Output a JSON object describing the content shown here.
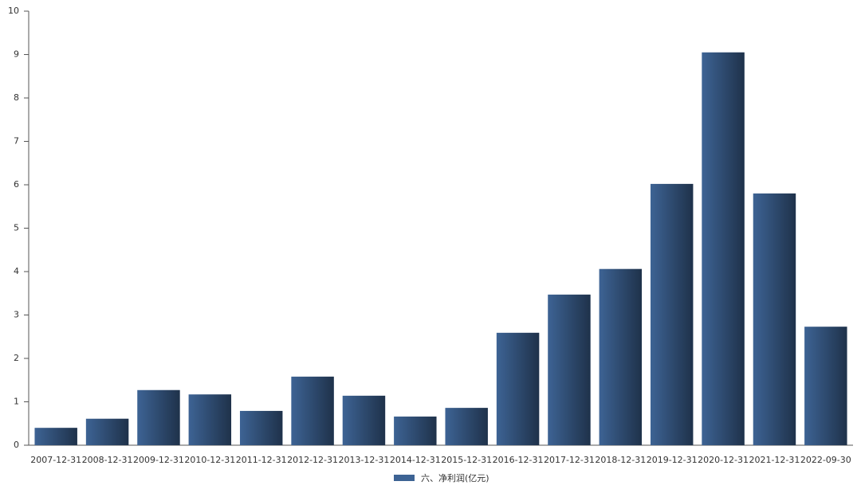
{
  "chart_data": {
    "type": "bar",
    "categories": [
      "2007-12-31",
      "2008-12-31",
      "2009-12-31",
      "2010-12-31",
      "2011-12-31",
      "2012-12-31",
      "2013-12-31",
      "2014-12-31",
      "2015-12-31",
      "2016-12-31",
      "2017-12-31",
      "2018-12-31",
      "2019-12-31",
      "2020-12-31",
      "2021-12-31",
      "2022-09-30"
    ],
    "series": [
      {
        "name": "六、净利润(亿元)",
        "color": "#3d6394",
        "values": [
          0.4,
          0.61,
          1.27,
          1.17,
          0.79,
          1.58,
          1.14,
          0.66,
          0.86,
          2.59,
          3.47,
          4.06,
          6.02,
          9.05,
          5.8,
          2.73
        ]
      }
    ],
    "ylim": [
      0,
      10
    ],
    "yticks": [
      0,
      1,
      2,
      3,
      4,
      5,
      6,
      7,
      8,
      9,
      10
    ],
    "grid": false,
    "legend": "bottom"
  }
}
